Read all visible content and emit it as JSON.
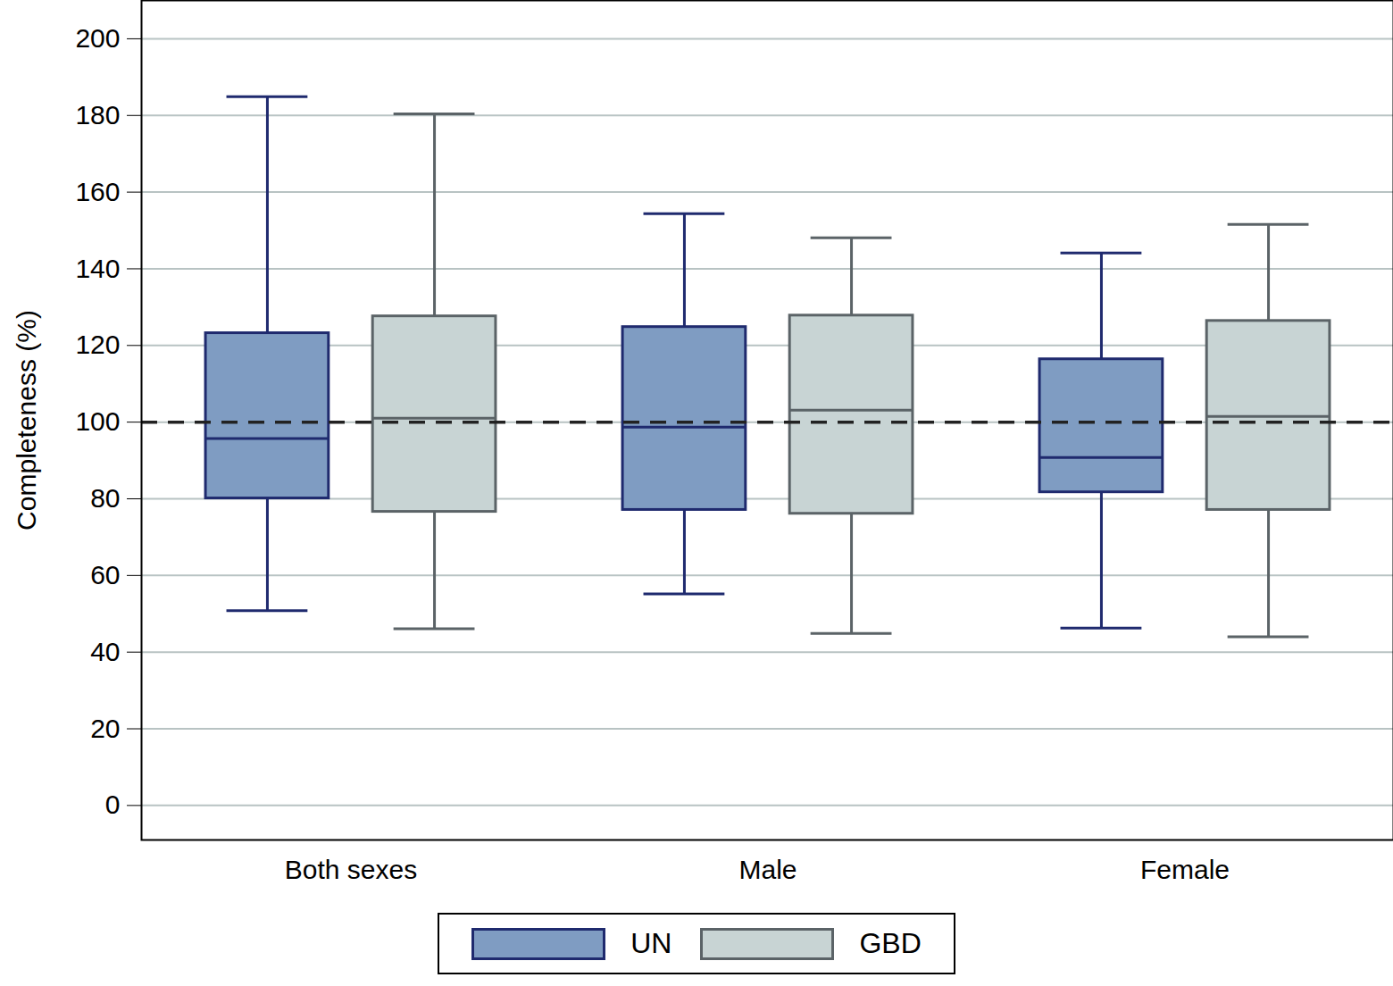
{
  "chart_data": {
    "type": "box",
    "y_label": "Completeness (%)",
    "categories": [
      "Both sexes",
      "Male",
      "Female"
    ],
    "series": [
      {
        "name": "UN",
        "color": "#7f9cc2",
        "values": [
          {
            "low": 50.8,
            "q1": 80.1,
            "median": 95.7,
            "q3": 123.2,
            "high": 184.9
          },
          {
            "low": 55.2,
            "q1": 77.1,
            "median": 98.7,
            "q3": 124.8,
            "high": 154.4
          },
          {
            "low": 46.3,
            "q1": 81.7,
            "median": 90.8,
            "q3": 116.4,
            "high": 144.1
          }
        ]
      },
      {
        "name": "GBD",
        "color": "#c8d4d4",
        "values": [
          {
            "low": 46.1,
            "q1": 76.6,
            "median": 101.0,
            "q3": 127.6,
            "high": 180.4
          },
          {
            "low": 44.9,
            "q1": 76.1,
            "median": 103.1,
            "q3": 127.8,
            "high": 148.1
          },
          {
            "low": 44.0,
            "q1": 77.1,
            "median": 101.5,
            "q3": 126.4,
            "high": 151.6
          }
        ]
      }
    ],
    "reference_line": 100,
    "ylim": [
      -9,
      210
    ],
    "yticks": [
      0,
      20,
      40,
      60,
      80,
      100,
      120,
      140,
      160,
      180,
      200
    ],
    "grid": true,
    "legend": "bottom"
  }
}
